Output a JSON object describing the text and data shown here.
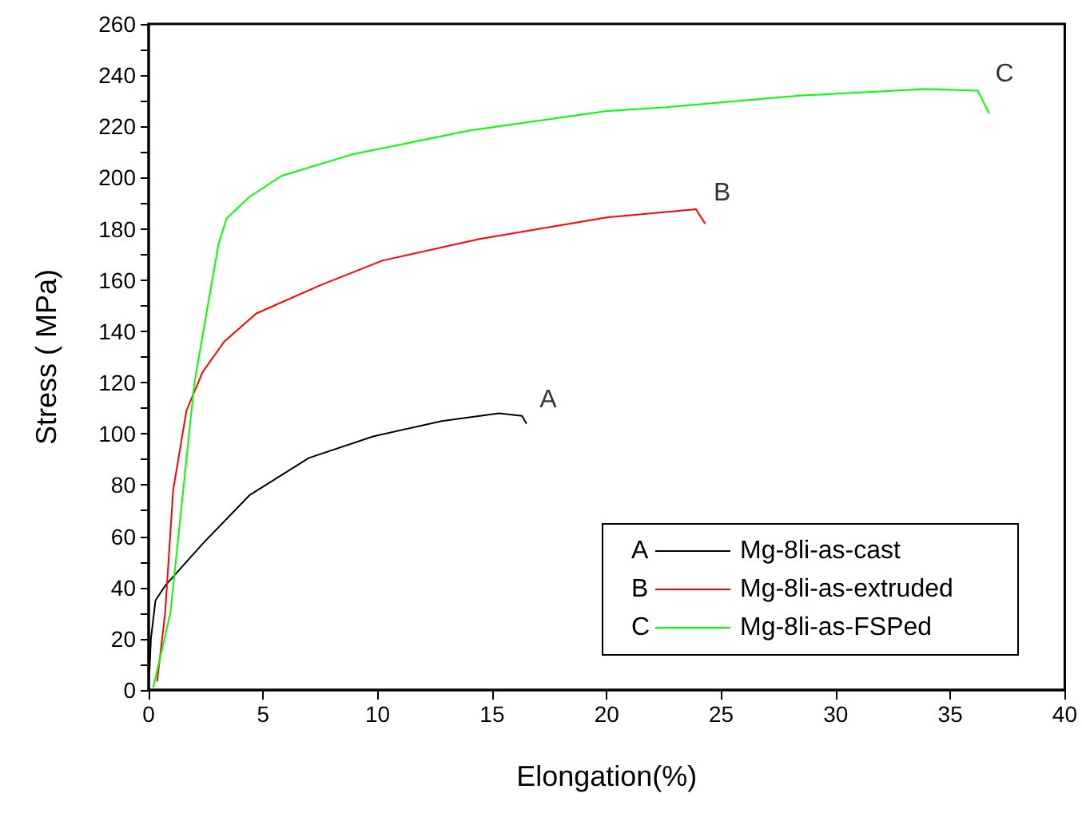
{
  "chart_data": {
    "type": "line",
    "xlabel": "Elongation(%)",
    "ylabel": "Stress ( MPa)",
    "xlim": [
      0,
      40
    ],
    "xticks": [
      0,
      5,
      10,
      15,
      20,
      25,
      30,
      35,
      40
    ],
    "ylim": [
      0,
      260
    ],
    "yticks": [
      0,
      20,
      40,
      60,
      80,
      100,
      120,
      140,
      160,
      180,
      200,
      220,
      240,
      260
    ],
    "grid": false,
    "legend": "bottom right",
    "marker": "none",
    "line_style": "solid",
    "series": [
      {
        "name": "Mg-8li-as-cast",
        "color": "#000000",
        "x": [
          0,
          0.1,
          0.3,
          0.72,
          2.35,
          4.4,
          7.0,
          9.8,
          12.8,
          15.3,
          16.3,
          16.5
        ],
        "values": [
          0,
          20,
          35,
          40.7,
          57,
          76,
          90.6,
          99,
          105,
          108,
          107,
          104
        ]
      },
      {
        "name": "Mg-8li-as-extruded",
        "color": "#ff0000",
        "x": [
          0.37,
          0.72,
          1.07,
          1.65,
          2.35,
          3.3,
          4.7,
          7.5,
          10.2,
          14.4,
          20,
          23.9,
          24.3
        ],
        "values": [
          3.3,
          30,
          78,
          109,
          124,
          136,
          147,
          158,
          167.6,
          176,
          184.5,
          187.7,
          182
        ]
      },
      {
        "name": "Mg-8li-as-FSPed",
        "color": "#00ff00",
        "x": [
          0.2,
          0.95,
          2.0,
          3.05,
          3.4,
          4.4,
          5.8,
          8.85,
          14,
          20,
          22.6,
          28.4,
          33.9,
          36.2,
          36.7
        ],
        "values": [
          1,
          30,
          120,
          174,
          184,
          192.5,
          200.7,
          209,
          218.4,
          226,
          227.5,
          232,
          234.6,
          234,
          225
        ]
      }
    ],
    "annotations": [
      {
        "text": "A",
        "x": 16.3,
        "y": 107
      },
      {
        "text": "B",
        "x": 23.9,
        "y": 187.7
      },
      {
        "text": "C",
        "x": 36.2,
        "y": 234
      }
    ]
  }
}
